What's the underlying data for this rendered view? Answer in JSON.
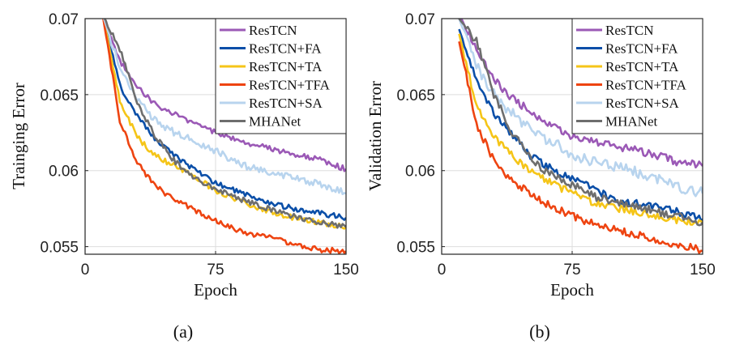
{
  "chart_data": [
    {
      "type": "line",
      "panel_caption": "(a)",
      "xlabel": "Epoch",
      "ylabel": "Trainging Error",
      "xlim": [
        0,
        150
      ],
      "ylim": [
        0.0545,
        0.07
      ],
      "xticks": [
        0,
        75,
        150
      ],
      "xtick_labels": [
        "0",
        "75",
        "150"
      ],
      "yticks": [
        0.055,
        0.06,
        0.065,
        0.07
      ],
      "ytick_labels": [
        "0.055",
        "0.06",
        "0.065",
        "0.07"
      ],
      "grid": true,
      "legend_position": "top-right",
      "x": [
        10,
        20,
        30,
        40,
        50,
        60,
        75,
        90,
        105,
        120,
        135,
        150
      ],
      "series": [
        {
          "name": "ResTCN",
          "color": "#9b59b6",
          "values": [
            0.0703,
            0.0672,
            0.0655,
            0.0644,
            0.0638,
            0.0632,
            0.0625,
            0.0619,
            0.0615,
            0.0611,
            0.0607,
            0.0601
          ]
        },
        {
          "name": "ResTCN+FA",
          "color": "#0b4fa8",
          "values": [
            0.0703,
            0.0656,
            0.0636,
            0.0621,
            0.0611,
            0.0603,
            0.0592,
            0.0585,
            0.0579,
            0.0575,
            0.0572,
            0.0569
          ]
        },
        {
          "name": "ResTCN+TA",
          "color": "#f5c518",
          "values": [
            0.0703,
            0.0646,
            0.0622,
            0.061,
            0.0604,
            0.0598,
            0.0587,
            0.058,
            0.0573,
            0.0569,
            0.0566,
            0.0563
          ]
        },
        {
          "name": "ResTCN+TFA",
          "color": "#ee4411",
          "values": [
            0.0703,
            0.0633,
            0.0605,
            0.059,
            0.0582,
            0.0576,
            0.0567,
            0.056,
            0.0556,
            0.0552,
            0.0548,
            0.0547
          ]
        },
        {
          "name": "ResTCN+SA",
          "color": "#b8d4ee",
          "values": [
            0.0703,
            0.0667,
            0.0648,
            0.0633,
            0.0626,
            0.0621,
            0.0613,
            0.0604,
            0.0599,
            0.0595,
            0.0591,
            0.0585
          ]
        },
        {
          "name": "MHANet",
          "color": "#6e6e6e",
          "values": [
            0.0703,
            0.068,
            0.0645,
            0.0623,
            0.0608,
            0.0597,
            0.0588,
            0.0581,
            0.0575,
            0.057,
            0.0566,
            0.0563
          ]
        }
      ]
    },
    {
      "type": "line",
      "panel_caption": "(b)",
      "xlabel": "Epoch",
      "ylabel": "Validation Error",
      "xlim": [
        0,
        150
      ],
      "ylim": [
        0.0545,
        0.07
      ],
      "xticks": [
        0,
        75,
        150
      ],
      "xtick_labels": [
        "0",
        "75",
        "150"
      ],
      "yticks": [
        0.055,
        0.06,
        0.065,
        0.07
      ],
      "ytick_labels": [
        "0.055",
        "0.06",
        "0.065",
        "0.07"
      ],
      "grid": true,
      "legend_position": "top-right",
      "x": [
        10,
        20,
        30,
        40,
        50,
        60,
        75,
        90,
        105,
        120,
        135,
        150
      ],
      "series": [
        {
          "name": "ResTCN",
          "color": "#9b59b6",
          "values": [
            0.0703,
            0.068,
            0.066,
            0.0648,
            0.064,
            0.0631,
            0.0623,
            0.0618,
            0.0615,
            0.0611,
            0.0606,
            0.0603
          ]
        },
        {
          "name": "ResTCN+FA",
          "color": "#0b4fa8",
          "values": [
            0.0693,
            0.066,
            0.0637,
            0.0625,
            0.0611,
            0.0603,
            0.0595,
            0.0586,
            0.0579,
            0.0577,
            0.0573,
            0.0568
          ]
        },
        {
          "name": "ResTCN+TA",
          "color": "#f5c518",
          "values": [
            0.069,
            0.0643,
            0.0623,
            0.061,
            0.06,
            0.0594,
            0.0585,
            0.0578,
            0.0574,
            0.0571,
            0.0567,
            0.0565
          ]
        },
        {
          "name": "ResTCN+TFA",
          "color": "#ee4411",
          "values": [
            0.0685,
            0.063,
            0.0607,
            0.0594,
            0.0586,
            0.0578,
            0.057,
            0.0564,
            0.056,
            0.0555,
            0.0552,
            0.0547
          ]
        },
        {
          "name": "ResTCN+SA",
          "color": "#b8d4ee",
          "values": [
            0.07,
            0.0669,
            0.065,
            0.0638,
            0.0628,
            0.0621,
            0.0611,
            0.0605,
            0.0602,
            0.0596,
            0.059,
            0.0585
          ]
        },
        {
          "name": "MHANet",
          "color": "#6e6e6e",
          "values": [
            0.07,
            0.0685,
            0.065,
            0.0626,
            0.061,
            0.0599,
            0.0591,
            0.0582,
            0.0578,
            0.0574,
            0.057,
            0.0566
          ]
        }
      ]
    }
  ]
}
